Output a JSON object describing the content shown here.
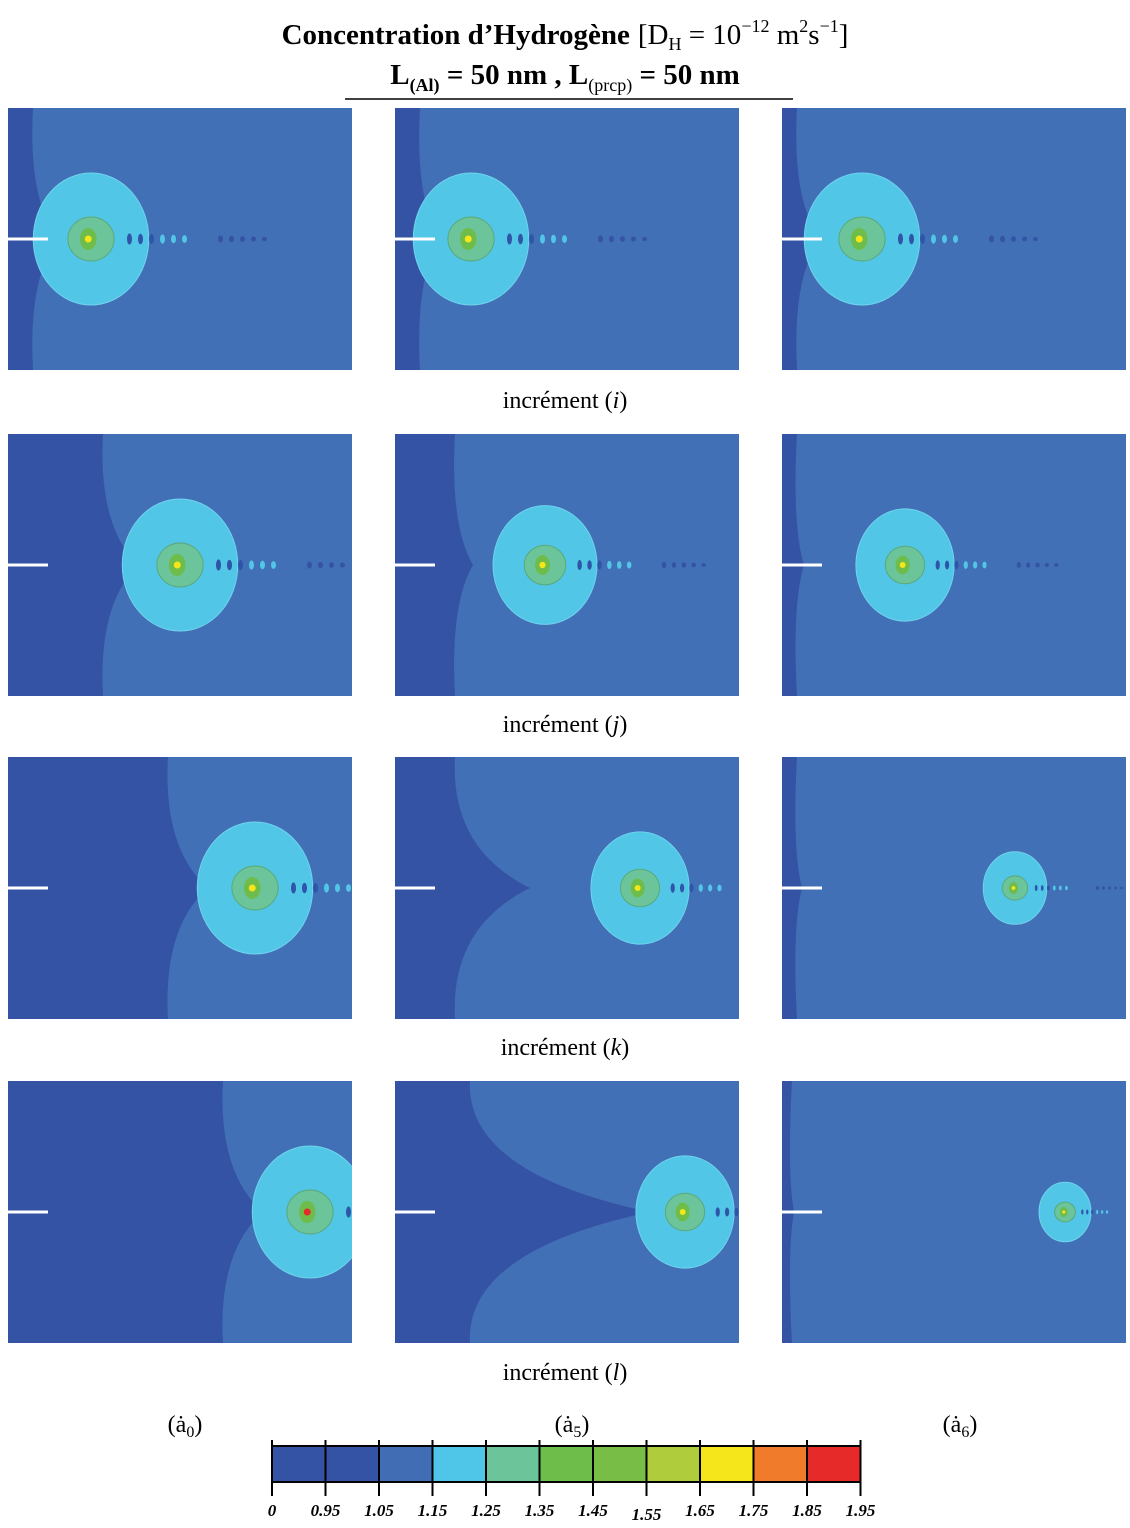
{
  "title": {
    "parts": [
      "Concentration d’Hydrogène",
      "[D",
      "H",
      " = 10",
      "−12",
      " m",
      "2",
      "s",
      "−1",
      "]"
    ]
  },
  "subtitle": {
    "parts": [
      "L",
      "(Al)",
      " = 50 nm , L",
      "(prcp)",
      " = 50 nm"
    ]
  },
  "row_labels": [
    [
      "incrément (",
      "i",
      ")"
    ],
    [
      "incrément (",
      "j",
      ")"
    ],
    [
      "incrément (",
      "k",
      ")"
    ],
    [
      "incrément (",
      "l",
      ")"
    ]
  ],
  "column_labels": [
    [
      "(ȧ",
      "0",
      ")"
    ],
    [
      "(ȧ",
      "5",
      ")"
    ],
    [
      "(ȧ",
      "6",
      ")"
    ]
  ],
  "colorbar": {
    "labels": [
      "0",
      "0.95",
      "1.05",
      "1.15",
      "1.25",
      "1.35",
      "1.45",
      "1.55",
      "1.65",
      "1.75",
      "1.85",
      "1.95"
    ]
  }
}
